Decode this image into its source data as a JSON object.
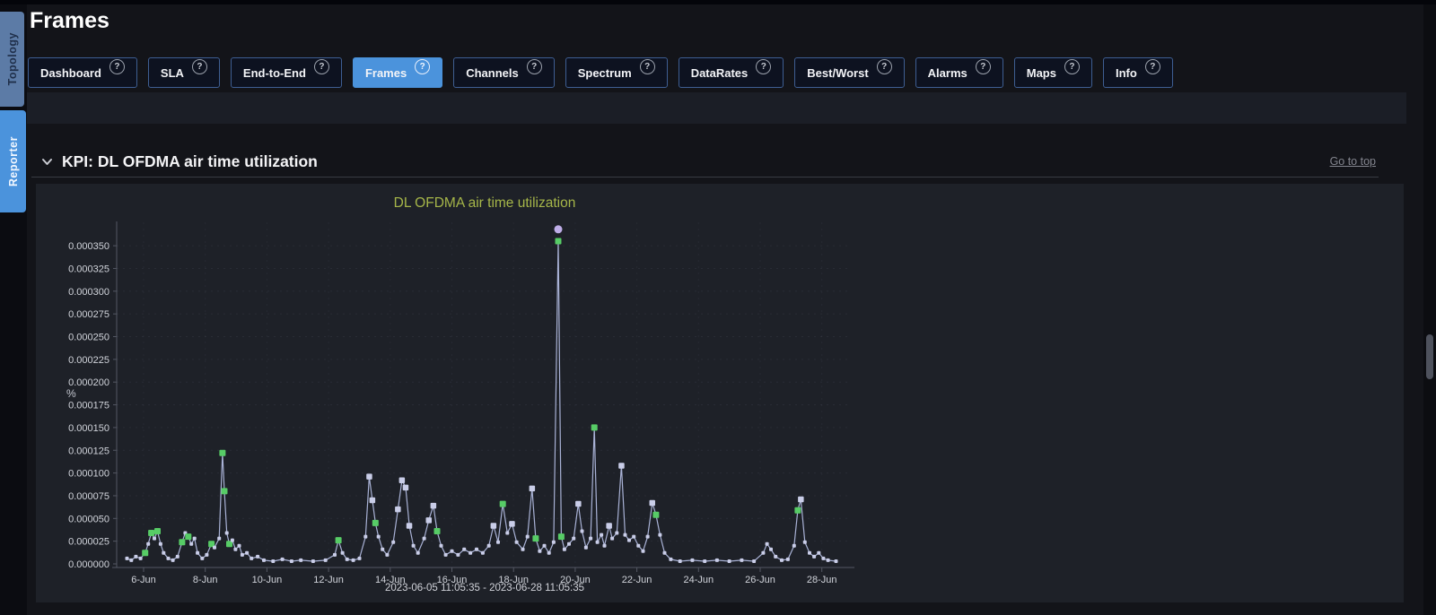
{
  "header": {
    "title": "Frames"
  },
  "sidebar": {
    "tabs": [
      {
        "label": "Topology",
        "active": false
      },
      {
        "label": "Reporter",
        "active": true
      }
    ]
  },
  "nav": {
    "help_icon": "?",
    "buttons": [
      {
        "label": "Dashboard",
        "active": false
      },
      {
        "label": "SLA",
        "active": false
      },
      {
        "label": "End-to-End",
        "active": false
      },
      {
        "label": "Frames",
        "active": true
      },
      {
        "label": "Channels",
        "active": false
      },
      {
        "label": "Spectrum",
        "active": false
      },
      {
        "label": "DataRates",
        "active": false
      },
      {
        "label": "Best/Worst",
        "active": false
      },
      {
        "label": "Alarms",
        "active": false
      },
      {
        "label": "Maps",
        "active": false
      },
      {
        "label": "Info",
        "active": false
      }
    ]
  },
  "section": {
    "title": "KPI: DL OFDMA air time utilization",
    "collapse_icon": "chevron-down",
    "go_to_top": "Go to top"
  },
  "icons": {
    "collapse": "chevron-down",
    "help": "question-mark-circle"
  },
  "colors": {
    "accent_blue": "#4b93dc",
    "inactive_tab_blue": "#5c7ba6",
    "button_border": "#3e5e92",
    "chart_title_green": "#a6b649",
    "line_lavender": "#a9b2d6",
    "marker_lavender": "#c9cde8",
    "marker_green": "#57cc66",
    "peak_circle_purple": "#bfaee8",
    "panel_bg": "#1e2128",
    "page_bg": "#131419"
  },
  "chart_data": {
    "type": "line",
    "title": "DL OFDMA air time utilization",
    "ylabel": "%",
    "x_range_label": "2023-06-05 11:05:35 - 2023-06-28 11:05:35",
    "x_start": "2023-06-05 11:05:35",
    "x_end": "2023-06-28 11:05:35",
    "ylim": [
      0,
      0.00035
    ],
    "grid": true,
    "legend_position": "none",
    "y_ticks": [
      {
        "label": "0.000000",
        "value": 0.0
      },
      {
        "label": "0.000025",
        "value": 2.5e-05
      },
      {
        "label": "0.000050",
        "value": 5e-05
      },
      {
        "label": "0.000075",
        "value": 7.5e-05
      },
      {
        "label": "0.000100",
        "value": 0.0001
      },
      {
        "label": "0.000125",
        "value": 0.000125
      },
      {
        "label": "0.000150",
        "value": 0.00015
      },
      {
        "label": "0.000175",
        "value": 0.000175
      },
      {
        "label": "0.000200",
        "value": 0.0002
      },
      {
        "label": "0.000225",
        "value": 0.000225
      },
      {
        "label": "0.000250",
        "value": 0.00025
      },
      {
        "label": "0.000275",
        "value": 0.000275
      },
      {
        "label": "0.000300",
        "value": 0.0003
      },
      {
        "label": "0.000325",
        "value": 0.000325
      },
      {
        "label": "0.000350",
        "value": 0.00035
      }
    ],
    "x_ticks": [
      {
        "label": "6-Jun",
        "day": 6
      },
      {
        "label": "8-Jun",
        "day": 8
      },
      {
        "label": "10-Jun",
        "day": 10
      },
      {
        "label": "12-Jun",
        "day": 12
      },
      {
        "label": "14-Jun",
        "day": 14
      },
      {
        "label": "16-Jun",
        "day": 16
      },
      {
        "label": "18-Jun",
        "day": 18
      },
      {
        "label": "20-Jun",
        "day": 20
      },
      {
        "label": "22-Jun",
        "day": 22
      },
      {
        "label": "24-Jun",
        "day": 24
      },
      {
        "label": "26-Jun",
        "day": 26
      },
      {
        "label": "28-Jun",
        "day": 28
      }
    ],
    "series": [
      {
        "name": "DL OFDMA air time utilization",
        "color": "#a9b2d6",
        "marker_color": "#c9cde8",
        "green_marker_color": "#57cc66",
        "top_marker": {
          "shape": "circle",
          "color": "#bfaee8",
          "day": 19.45,
          "value": 0.000368
        },
        "points": [
          [
            5.46,
            6e-06
          ],
          [
            5.6,
            4e-06
          ],
          [
            5.75,
            8e-06
          ],
          [
            5.9,
            6e-06
          ],
          [
            6.05,
            1.2e-05,
            "g"
          ],
          [
            6.15,
            2.2e-05
          ],
          [
            6.25,
            3.4e-05,
            "g"
          ],
          [
            6.35,
            2.8e-05
          ],
          [
            6.45,
            3.6e-05,
            "g"
          ],
          [
            6.55,
            2.2e-05
          ],
          [
            6.65,
            1.2e-05
          ],
          [
            6.8,
            6e-06
          ],
          [
            6.95,
            4e-06
          ],
          [
            7.1,
            8e-06
          ],
          [
            7.25,
            2.4e-05,
            "g"
          ],
          [
            7.35,
            3.4e-05
          ],
          [
            7.45,
            3e-05,
            "g"
          ],
          [
            7.55,
            2.2e-05
          ],
          [
            7.65,
            2.8e-05
          ],
          [
            7.75,
            1.2e-05
          ],
          [
            7.9,
            6e-06
          ],
          [
            8.05,
            1e-05
          ],
          [
            8.2,
            2.2e-05,
            "g"
          ],
          [
            8.3,
            1.8e-05
          ],
          [
            8.45,
            2.8e-05
          ],
          [
            8.56,
            0.000122,
            "g"
          ],
          [
            8.62,
            8e-05,
            "g"
          ],
          [
            8.7,
            3.4e-05
          ],
          [
            8.78,
            2.2e-05,
            "g"
          ],
          [
            8.88,
            2.6e-05
          ],
          [
            8.98,
            1.6e-05
          ],
          [
            9.1,
            2e-05
          ],
          [
            9.2,
            1e-05
          ],
          [
            9.35,
            1.2e-05
          ],
          [
            9.5,
            6e-06
          ],
          [
            9.7,
            8e-06
          ],
          [
            9.9,
            4e-06
          ],
          [
            10.2,
            3e-06
          ],
          [
            10.5,
            5e-06
          ],
          [
            10.8,
            3e-06
          ],
          [
            11.1,
            4e-06
          ],
          [
            11.5,
            3e-06
          ],
          [
            11.9,
            4e-06
          ],
          [
            12.2,
            1e-05
          ],
          [
            12.32,
            2.6e-05,
            "g"
          ],
          [
            12.45,
            1.2e-05
          ],
          [
            12.6,
            5e-06
          ],
          [
            12.8,
            4e-06
          ],
          [
            13.0,
            6e-06
          ],
          [
            13.2,
            3e-05
          ],
          [
            13.32,
            9.6e-05
          ],
          [
            13.42,
            7e-05
          ],
          [
            13.52,
            4.5e-05,
            "g"
          ],
          [
            13.62,
            3e-05
          ],
          [
            13.75,
            1.6e-05
          ],
          [
            13.9,
            1e-05
          ],
          [
            14.1,
            2.4e-05
          ],
          [
            14.25,
            6e-05
          ],
          [
            14.38,
            9.2e-05
          ],
          [
            14.5,
            8.4e-05
          ],
          [
            14.62,
            4.2e-05
          ],
          [
            14.75,
            2e-05
          ],
          [
            14.9,
            1.2e-05
          ],
          [
            15.1,
            2.8e-05
          ],
          [
            15.25,
            4.8e-05
          ],
          [
            15.4,
            6.4e-05
          ],
          [
            15.52,
            3.6e-05,
            "g"
          ],
          [
            15.65,
            2e-05
          ],
          [
            15.8,
            1e-05
          ],
          [
            16.0,
            1.4e-05
          ],
          [
            16.2,
            1e-05
          ],
          [
            16.4,
            1.6e-05
          ],
          [
            16.6,
            1.2e-05
          ],
          [
            16.8,
            1.6e-05
          ],
          [
            17.0,
            1.2e-05
          ],
          [
            17.2,
            2e-05
          ],
          [
            17.35,
            4.2e-05
          ],
          [
            17.5,
            2.4e-05
          ],
          [
            17.65,
            6.6e-05,
            "g"
          ],
          [
            17.8,
            3.4e-05
          ],
          [
            17.95,
            4.4e-05
          ],
          [
            18.1,
            2.4e-05
          ],
          [
            18.3,
            1.6e-05
          ],
          [
            18.45,
            3e-05
          ],
          [
            18.6,
            8.3e-05
          ],
          [
            18.72,
            2.8e-05,
            "g"
          ],
          [
            18.85,
            1.4e-05
          ],
          [
            19.0,
            2e-05
          ],
          [
            19.15,
            1.2e-05
          ],
          [
            19.3,
            2.4e-05
          ],
          [
            19.45,
            0.000355,
            "g"
          ],
          [
            19.55,
            3e-05,
            "g"
          ],
          [
            19.65,
            1.6e-05
          ],
          [
            19.8,
            2.2e-05
          ],
          [
            19.95,
            2.8e-05
          ],
          [
            20.1,
            6.6e-05
          ],
          [
            20.22,
            3.6e-05
          ],
          [
            20.35,
            1.8e-05
          ],
          [
            20.5,
            2.8e-05
          ],
          [
            20.62,
            0.00015,
            "g"
          ],
          [
            20.72,
            2.4e-05
          ],
          [
            20.85,
            3.2e-05
          ],
          [
            20.95,
            2e-05
          ],
          [
            21.1,
            4.2e-05
          ],
          [
            21.2,
            2.8e-05
          ],
          [
            21.35,
            3.4e-05
          ],
          [
            21.5,
            0.000108
          ],
          [
            21.62,
            3.2e-05
          ],
          [
            21.75,
            2.6e-05
          ],
          [
            21.9,
            3e-05
          ],
          [
            22.05,
            2e-05
          ],
          [
            22.2,
            1.4e-05
          ],
          [
            22.35,
            3e-05
          ],
          [
            22.5,
            6.7e-05
          ],
          [
            22.62,
            5.4e-05,
            "g"
          ],
          [
            22.75,
            3.2e-05
          ],
          [
            22.9,
            1.2e-05
          ],
          [
            23.1,
            5e-06
          ],
          [
            23.4,
            3e-06
          ],
          [
            23.8,
            4e-06
          ],
          [
            24.2,
            3e-06
          ],
          [
            24.6,
            4e-06
          ],
          [
            25.0,
            3e-06
          ],
          [
            25.4,
            4e-06
          ],
          [
            25.8,
            3e-06
          ],
          [
            26.1,
            1.2e-05
          ],
          [
            26.22,
            2.2e-05
          ],
          [
            26.35,
            1.6e-05
          ],
          [
            26.5,
            8e-06
          ],
          [
            26.7,
            4e-06
          ],
          [
            26.9,
            5e-06
          ],
          [
            27.1,
            2e-05
          ],
          [
            27.22,
            5.9e-05,
            "g"
          ],
          [
            27.32,
            7.1e-05
          ],
          [
            27.45,
            2.4e-05
          ],
          [
            27.6,
            1.2e-05
          ],
          [
            27.75,
            8e-06
          ],
          [
            27.9,
            1.2e-05
          ],
          [
            28.05,
            6e-06
          ],
          [
            28.2,
            4e-06
          ],
          [
            28.46,
            3e-06
          ]
        ]
      }
    ]
  }
}
